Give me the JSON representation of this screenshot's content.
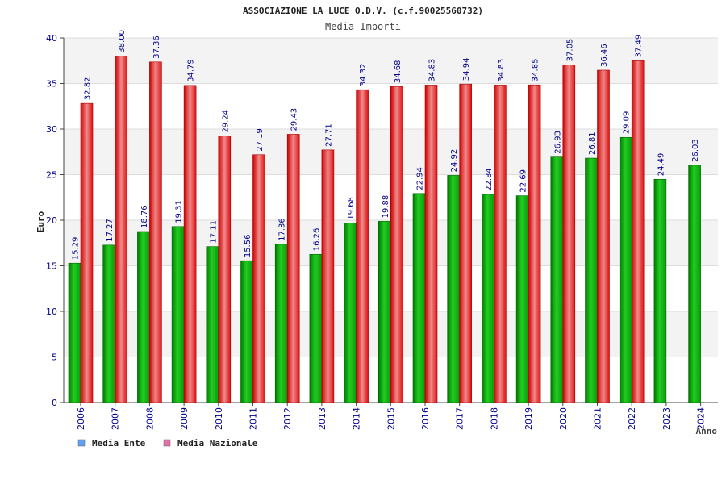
{
  "chart_data": {
    "type": "bar",
    "title": "ASSOCIAZIONE LA LUCE O.D.V. (c.f.90025560732)",
    "subtitle": "Media Importi",
    "xlabel": "Anno",
    "ylabel": "Euro",
    "ylim": [
      0,
      40
    ],
    "yticks": [
      0,
      5,
      10,
      15,
      20,
      25,
      30,
      35,
      40
    ],
    "grid": true,
    "legend_position": "bottom-left",
    "categories": [
      "2006",
      "2007",
      "2008",
      "2009",
      "2010",
      "2011",
      "2012",
      "2013",
      "2014",
      "2015",
      "2016",
      "2017",
      "2018",
      "2019",
      "2020",
      "2021",
      "2022",
      "2023",
      "2024"
    ],
    "series": [
      {
        "name": "Media Ente",
        "color": "#11bb11",
        "legend_color": "#5fa0f0",
        "values": [
          15.29,
          17.27,
          18.76,
          19.31,
          17.11,
          15.56,
          17.36,
          16.26,
          19.68,
          19.88,
          22.94,
          24.92,
          22.84,
          22.69,
          26.93,
          26.81,
          29.09,
          24.49,
          26.03
        ],
        "labels": [
          "15.29",
          "17.27",
          "18.76",
          "19.31",
          "17.11",
          "15.56",
          "17.36",
          "16.26",
          "19.68",
          "19.88",
          "22.94",
          "24.92",
          "22.84",
          "22.69",
          "26.93",
          "26.81",
          "29.09",
          "24.49",
          "26.03"
        ]
      },
      {
        "name": "Media Nazionale",
        "color": "#ee2222",
        "legend_color": "#e070a8",
        "values": [
          32.82,
          38.0,
          37.36,
          34.79,
          29.24,
          27.19,
          29.43,
          27.71,
          34.32,
          34.68,
          34.83,
          34.94,
          34.83,
          34.85,
          37.05,
          36.46,
          37.49,
          null,
          null
        ],
        "labels": [
          "32.82",
          "38.00",
          "37.36",
          "34.79",
          "29.24",
          "27.19",
          "29.43",
          "27.71",
          "34.32",
          "34.68",
          "34.83",
          "34.94",
          "34.83",
          "34.85",
          "37.05",
          "36.46",
          "37.49",
          null,
          null
        ]
      }
    ]
  }
}
